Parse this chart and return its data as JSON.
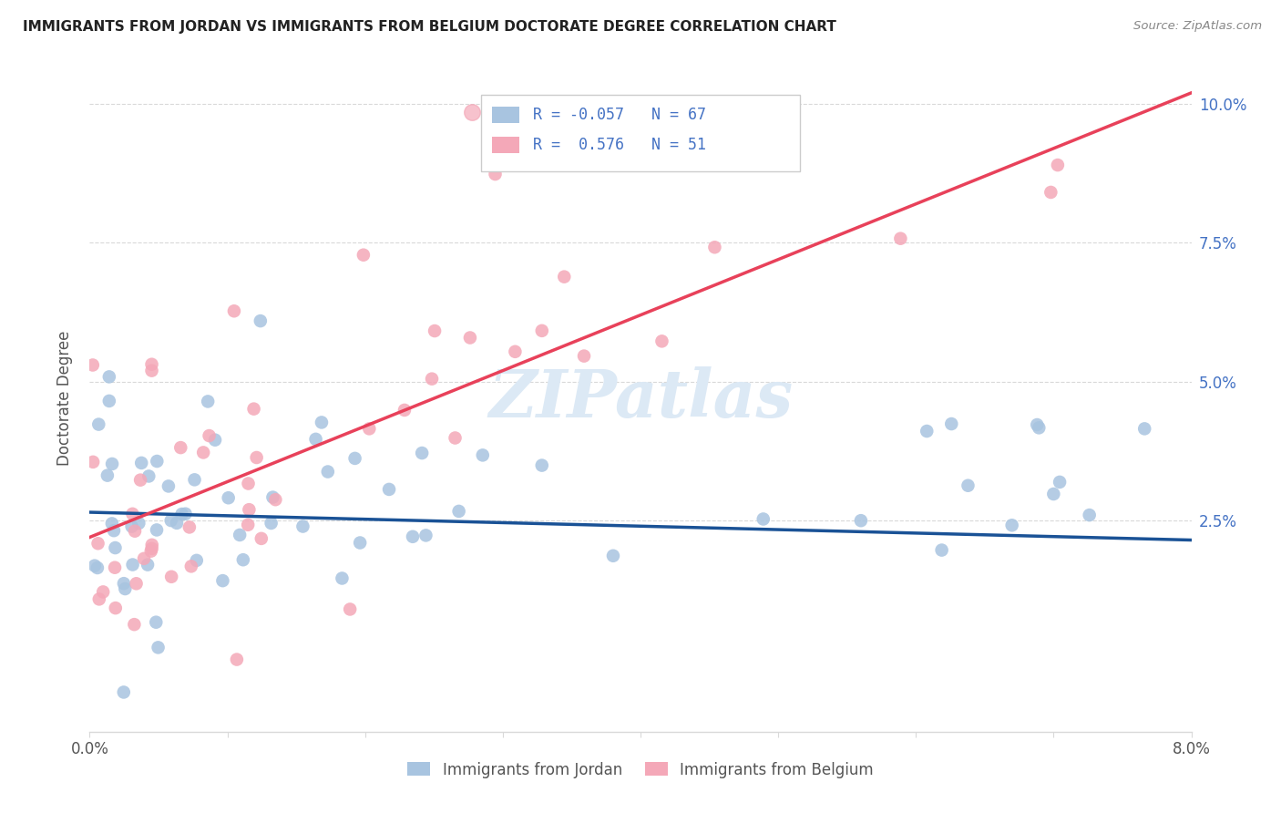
{
  "title": "IMMIGRANTS FROM JORDAN VS IMMIGRANTS FROM BELGIUM DOCTORATE DEGREE CORRELATION CHART",
  "source": "Source: ZipAtlas.com",
  "ylabel": "Doctorate Degree",
  "color_jordan": "#a8c4e0",
  "color_belgium": "#f4a8b8",
  "line_color_jordan": "#1a5296",
  "line_color_belgium": "#e8415a",
  "legend_text_color": "#4472c4",
  "xlim": [
    0.0,
    0.08
  ],
  "ylim": [
    -0.013,
    0.107
  ],
  "ytick_vals": [
    0.0,
    0.025,
    0.05,
    0.075,
    0.1
  ],
  "ytick_labels": [
    "",
    "2.5%",
    "5.0%",
    "7.5%",
    "10.0%"
  ],
  "xtick_vals": [
    0.0,
    0.01,
    0.02,
    0.03,
    0.04,
    0.05,
    0.06,
    0.07,
    0.08
  ],
  "grid_color": "#d9d9d9",
  "spine_color": "#d9d9d9",
  "watermark": "ZIPatlas",
  "watermark_color": "#dce9f5",
  "jordan_line_x": [
    0.0,
    0.08
  ],
  "jordan_line_y": [
    0.0265,
    0.0215
  ],
  "belgium_line_x": [
    0.0,
    0.08
  ],
  "belgium_line_y": [
    0.022,
    0.102
  ],
  "legend_r1": "R = -0.057",
  "legend_n1": "N = 67",
  "legend_r2": "R =  0.576",
  "legend_n2": "N = 51",
  "legend_label1": "Immigrants from Jordan",
  "legend_label2": "Immigrants from Belgium"
}
